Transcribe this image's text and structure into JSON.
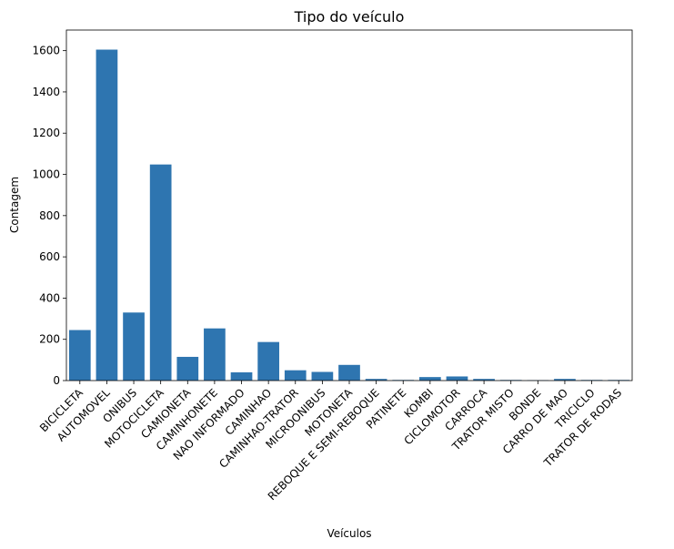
{
  "chart_data": {
    "type": "bar",
    "title": "Tipo do veículo",
    "xlabel": "Veículos",
    "ylabel": "Contagem",
    "ylim": [
      0,
      1700
    ],
    "yticks": [
      0,
      200,
      400,
      600,
      800,
      1000,
      1200,
      1400,
      1600
    ],
    "categories": [
      "BICICLETA",
      "AUTOMOVEL",
      "ONIBUS",
      "MOTOCICLETA",
      "CAMIONETA",
      "CAMINHONETE",
      "NAO INFORMADO",
      "CAMINHAO",
      "CAMINHAO-TRATOR",
      "MICROONIBUS",
      "MOTONETA",
      "REBOQUE E SEMI-REBOQUE",
      "PATINETE",
      "KOMBI",
      "CICLOMOTOR",
      "CARROCA",
      "TRATOR MISTO",
      "BONDE",
      "CARRO DE MAO",
      "TRICICLO",
      "TRATOR DE RODAS"
    ],
    "values": [
      245,
      1605,
      330,
      1048,
      115,
      253,
      40,
      187,
      50,
      42,
      76,
      8,
      3,
      17,
      20,
      8,
      3,
      2,
      8,
      3,
      3
    ],
    "bar_color": "#2e75b0",
    "grid": false
  }
}
